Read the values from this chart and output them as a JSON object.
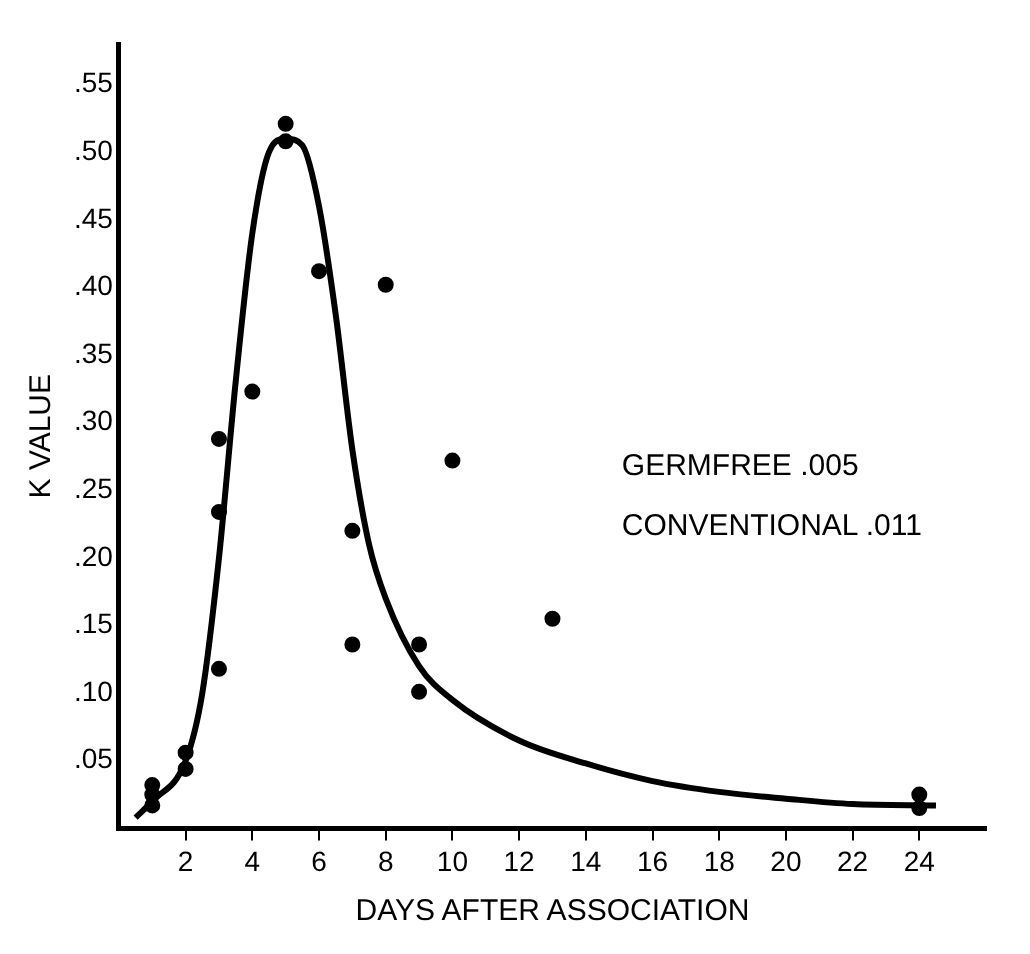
{
  "chart_data": {
    "type": "scatter",
    "xlabel": "DAYS AFTER ASSOCIATION",
    "ylabel": "K VALUE",
    "xlim": [
      0,
      26
    ],
    "xticks": [
      2,
      4,
      6,
      8,
      10,
      12,
      14,
      16,
      18,
      20,
      22,
      24
    ],
    "ylim": [
      0,
      0.58
    ],
    "yticks": [
      {
        "value": 0.05,
        "label": ".05"
      },
      {
        "value": 0.1,
        "label": ".10"
      },
      {
        "value": 0.15,
        "label": ".15"
      },
      {
        "value": 0.2,
        "label": ".20"
      },
      {
        "value": 0.25,
        "label": ".25"
      },
      {
        "value": 0.3,
        "label": ".30"
      },
      {
        "value": 0.35,
        "label": ".35"
      },
      {
        "value": 0.4,
        "label": ".40"
      },
      {
        "value": 0.45,
        "label": ".45"
      },
      {
        "value": 0.5,
        "label": ".50"
      },
      {
        "value": 0.55,
        "label": ".55"
      }
    ],
    "grid": false,
    "legend": false,
    "marker": "circle",
    "annotations": [
      "GERMFREE .005",
      "CONVENTIONAL .011"
    ],
    "series": [
      {
        "color": "#000000",
        "x": [
          1,
          1,
          1,
          2,
          2,
          3,
          3,
          3,
          4,
          5,
          5,
          6,
          7,
          7,
          8,
          9,
          9,
          10,
          13,
          24,
          24
        ],
        "values": [
          0.032,
          0.025,
          0.017,
          0.056,
          0.044,
          0.288,
          0.234,
          0.118,
          0.323,
          0.521,
          0.508,
          0.412,
          0.22,
          0.136,
          0.402,
          0.136,
          0.101,
          0.272,
          0.155,
          0.025,
          0.015
        ]
      },
      {
        "type": "line",
        "color": "#000000",
        "marker": "none",
        "x": [
          0.5,
          1,
          2,
          2.5,
          3,
          3.5,
          4,
          4.5,
          5,
          5.5,
          6,
          6.5,
          7,
          7.5,
          8,
          9,
          10,
          12,
          14,
          16,
          18,
          20,
          22,
          24.5
        ],
        "values": [
          0.008,
          0.02,
          0.05,
          0.1,
          0.2,
          0.33,
          0.44,
          0.5,
          0.51,
          0.505,
          0.46,
          0.38,
          0.28,
          0.21,
          0.17,
          0.12,
          0.095,
          0.065,
          0.048,
          0.035,
          0.027,
          0.022,
          0.018,
          0.017
        ]
      }
    ]
  }
}
